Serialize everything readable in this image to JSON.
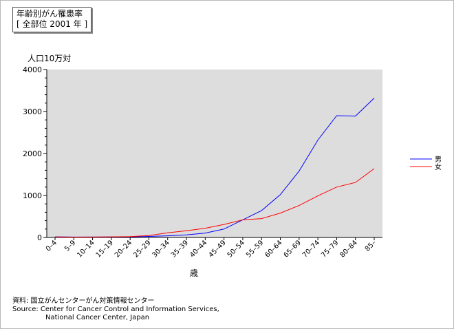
{
  "chart_data": {
    "type": "line",
    "title": "年齢別がん罹患率",
    "subtitle": "[ 全部位 2001 年 ]",
    "ylabel": "人口10万対",
    "xlabel": "歳",
    "ylim": [
      0,
      4000
    ],
    "yticks": [
      "0",
      "1000",
      "2000",
      "3000",
      "4000"
    ],
    "grid": false,
    "legend_position": "right",
    "categories": [
      "0–4",
      "5–9",
      "10–14",
      "15–19",
      "20–24",
      "25–29",
      "30–34",
      "35–39",
      "40–44",
      "45–49",
      "50–54",
      "55–59",
      "60–64",
      "65–69",
      "70–74",
      "75–79",
      "80–84",
      "85–"
    ],
    "series": [
      {
        "name": "男",
        "color": "#0000ff",
        "values": [
          15,
          10,
          10,
          12,
          15,
          25,
          40,
          60,
          105,
          200,
          420,
          640,
          1020,
          1580,
          2320,
          2900,
          2890,
          3320
        ]
      },
      {
        "name": "女",
        "color": "#ff0000",
        "values": [
          12,
          8,
          10,
          14,
          20,
          45,
          110,
          160,
          220,
          310,
          420,
          450,
          580,
          760,
          990,
          1200,
          1310,
          1640
        ]
      }
    ],
    "background": "#dddddd"
  },
  "footer": {
    "line1": "資料: 国立がんセンターがん対策情報センター",
    "line2": "Source:  Center for Cancer Control and Information Services,",
    "line3": "National Cancer Center, Japan"
  }
}
